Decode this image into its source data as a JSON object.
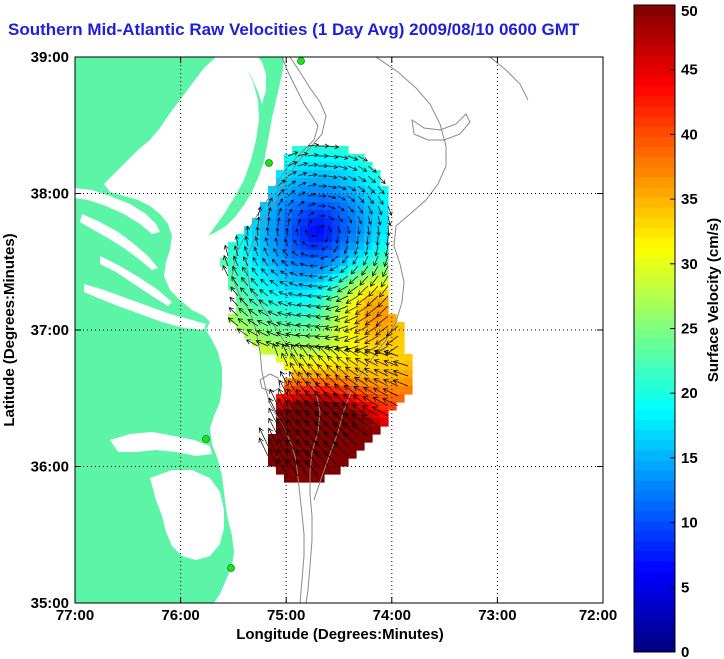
{
  "title": "Southern Mid-Atlantic Raw Velocities (1 Day Avg) 2009/08/10 0600 GMT",
  "map": {
    "xlabel": "Longitude (Degrees:Minutes)",
    "ylabel": "Latitude (Degrees:Minutes)",
    "x_ticks": [
      "77:00",
      "76:00",
      "75:00",
      "74:00",
      "73:00",
      "72:00"
    ],
    "y_ticks": [
      "39:00",
      "38:00",
      "37:00",
      "36:00",
      "35:00"
    ],
    "lon_range": [
      -77,
      -72
    ],
    "lat_range": [
      35,
      39
    ],
    "colors": {
      "land": "#5cf5a8",
      "ocean": "#ffffff",
      "grid": "#000000",
      "coast": "#ffffff",
      "isobath": "#8a8a8a",
      "station": "#22dd22"
    }
  },
  "colorbar": {
    "label": "Surface Velocity (cm/s)",
    "ticks": [
      "0",
      "5",
      "10",
      "15",
      "20",
      "25",
      "30",
      "35",
      "40",
      "45",
      "50"
    ],
    "range": [
      0,
      50
    ],
    "colormap": "jet"
  }
}
